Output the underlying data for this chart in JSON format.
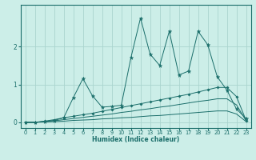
{
  "xlabel": "Humidex (Indice chaleur)",
  "bg_color": "#cceee8",
  "grid_color": "#aad4ce",
  "line_color": "#1a6e6a",
  "x_ticks": [
    0,
    1,
    2,
    3,
    4,
    5,
    6,
    7,
    8,
    9,
    10,
    11,
    12,
    13,
    14,
    15,
    16,
    17,
    18,
    19,
    20,
    21,
    22,
    23
  ],
  "y_ticks": [
    0,
    1,
    2
  ],
  "ylim": [
    -0.15,
    3.1
  ],
  "xlim": [
    -0.5,
    23.5
  ],
  "series": {
    "volatile": {
      "x": [
        0,
        1,
        2,
        3,
        4,
        5,
        6,
        7,
        8,
        9,
        10,
        11,
        12,
        13,
        14,
        15,
        16,
        17,
        18,
        19,
        20,
        21,
        22,
        23
      ],
      "y": [
        0.0,
        0.0,
        0.02,
        0.05,
        0.12,
        0.65,
        1.15,
        0.7,
        0.4,
        0.42,
        0.45,
        1.7,
        2.75,
        1.8,
        1.5,
        2.4,
        1.25,
        1.35,
        2.4,
        2.05,
        1.2,
        0.85,
        0.35,
        0.1
      ]
    },
    "upper": {
      "x": [
        0,
        1,
        2,
        3,
        4,
        5,
        6,
        7,
        8,
        9,
        10,
        11,
        12,
        13,
        14,
        15,
        16,
        17,
        18,
        19,
        20,
        21,
        22,
        23
      ],
      "y": [
        0.0,
        0.0,
        0.03,
        0.07,
        0.12,
        0.16,
        0.2,
        0.24,
        0.29,
        0.34,
        0.39,
        0.44,
        0.49,
        0.54,
        0.59,
        0.64,
        0.69,
        0.74,
        0.8,
        0.86,
        0.92,
        0.92,
        0.68,
        0.05
      ]
    },
    "middle": {
      "x": [
        0,
        1,
        2,
        3,
        4,
        5,
        6,
        7,
        8,
        9,
        10,
        11,
        12,
        13,
        14,
        15,
        16,
        17,
        18,
        19,
        20,
        21,
        22,
        23
      ],
      "y": [
        0.0,
        0.0,
        0.02,
        0.04,
        0.07,
        0.1,
        0.13,
        0.16,
        0.19,
        0.22,
        0.26,
        0.29,
        0.33,
        0.36,
        0.4,
        0.43,
        0.47,
        0.51,
        0.55,
        0.58,
        0.62,
        0.62,
        0.46,
        0.04
      ]
    },
    "lower": {
      "x": [
        0,
        1,
        2,
        3,
        4,
        5,
        6,
        7,
        8,
        9,
        10,
        11,
        12,
        13,
        14,
        15,
        16,
        17,
        18,
        19,
        20,
        21,
        22,
        23
      ],
      "y": [
        0.0,
        0.0,
        0.01,
        0.02,
        0.03,
        0.05,
        0.06,
        0.07,
        0.09,
        0.1,
        0.12,
        0.13,
        0.15,
        0.17,
        0.18,
        0.2,
        0.22,
        0.24,
        0.26,
        0.28,
        0.3,
        0.3,
        0.22,
        0.02
      ]
    }
  }
}
